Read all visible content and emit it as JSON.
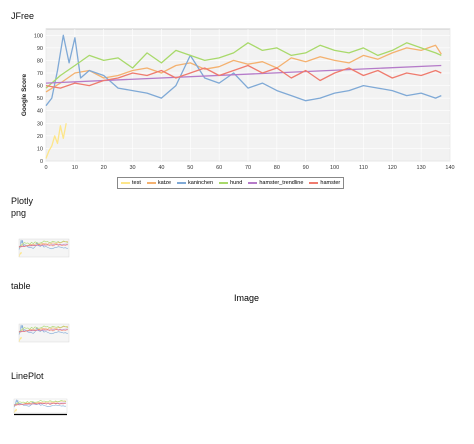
{
  "sections": {
    "jfree": "JFree",
    "plotly": "Plotly",
    "png": "png",
    "table": "table",
    "image_caption": "Image",
    "lineplot": "LinePlot"
  },
  "chart_data": {
    "type": "line",
    "title": "",
    "xlabel": "",
    "ylabel": "Google Score",
    "xlim": [
      0,
      140
    ],
    "ylim": [
      0,
      105
    ],
    "xticks": [
      0,
      10,
      20,
      30,
      40,
      50,
      60,
      70,
      80,
      90,
      100,
      110,
      120,
      130,
      140
    ],
    "yticks": [
      0,
      10,
      20,
      30,
      40,
      50,
      60,
      70,
      80,
      90,
      100
    ],
    "grid": true,
    "legend_position": "bottom",
    "series": [
      {
        "name": "test",
        "color": "#fde68a",
        "x": [
          0,
          1,
          2,
          3,
          4,
          5,
          6,
          7
        ],
        "y": [
          2,
          8,
          12,
          20,
          14,
          28,
          18,
          30
        ]
      },
      {
        "name": "katze",
        "color": "#f4b16f",
        "x": [
          0,
          5,
          10,
          15,
          20,
          25,
          30,
          35,
          40,
          45,
          50,
          55,
          60,
          65,
          70,
          75,
          80,
          85,
          90,
          95,
          100,
          105,
          110,
          115,
          120,
          125,
          130,
          135,
          137
        ],
        "y": [
          55,
          62,
          70,
          72,
          66,
          68,
          72,
          74,
          70,
          76,
          78,
          73,
          75,
          80,
          77,
          79,
          74,
          82,
          79,
          83,
          80,
          78,
          84,
          81,
          86,
          90,
          88,
          92,
          85
        ]
      },
      {
        "name": "kaninchen",
        "color": "#7fa9d6",
        "x": [
          0,
          2,
          4,
          6,
          8,
          10,
          12,
          15,
          20,
          25,
          30,
          35,
          40,
          45,
          50,
          55,
          60,
          65,
          70,
          75,
          80,
          85,
          90,
          95,
          100,
          105,
          110,
          115,
          120,
          125,
          130,
          135,
          137
        ],
        "y": [
          44,
          50,
          72,
          100,
          78,
          98,
          66,
          72,
          68,
          58,
          56,
          54,
          50,
          60,
          84,
          66,
          62,
          70,
          58,
          62,
          56,
          52,
          48,
          50,
          54,
          56,
          60,
          58,
          56,
          52,
          54,
          50,
          52
        ]
      },
      {
        "name": "hund",
        "color": "#a8d96a",
        "x": [
          0,
          5,
          10,
          15,
          20,
          25,
          30,
          35,
          40,
          45,
          50,
          55,
          60,
          65,
          70,
          75,
          80,
          85,
          90,
          95,
          100,
          105,
          110,
          115,
          120,
          125,
          130,
          135,
          137
        ],
        "y": [
          58,
          68,
          76,
          84,
          80,
          82,
          74,
          86,
          78,
          88,
          84,
          80,
          82,
          86,
          94,
          88,
          90,
          84,
          86,
          92,
          88,
          86,
          90,
          84,
          88,
          94,
          90,
          86,
          84
        ]
      },
      {
        "name": "hamster_trendline",
        "color": "#b57bc9",
        "x": [
          0,
          137
        ],
        "y": [
          62,
          76
        ]
      },
      {
        "name": "hamster",
        "color": "#ef7b6e",
        "x": [
          0,
          5,
          10,
          15,
          20,
          25,
          30,
          35,
          40,
          45,
          50,
          55,
          60,
          65,
          70,
          75,
          80,
          85,
          90,
          95,
          100,
          105,
          110,
          115,
          120,
          125,
          130,
          135,
          137
        ],
        "y": [
          60,
          58,
          62,
          60,
          64,
          66,
          70,
          68,
          72,
          66,
          70,
          74,
          68,
          72,
          76,
          70,
          74,
          66,
          72,
          64,
          70,
          74,
          68,
          72,
          66,
          70,
          68,
          72,
          70
        ]
      }
    ]
  }
}
